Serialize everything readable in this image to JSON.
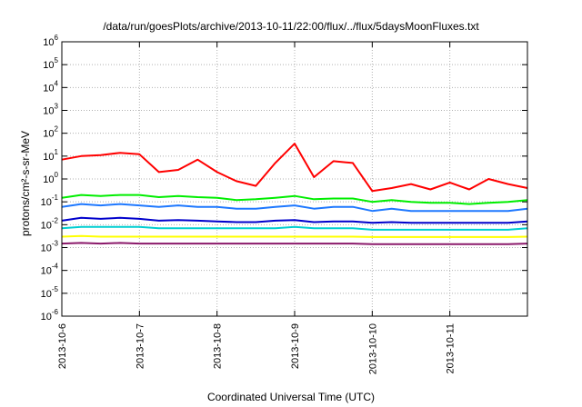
{
  "chart_data": {
    "type": "line",
    "title": "/data/run/goesPlots/archive/2013-10-11/22:00/flux/../flux/5daysMoonFluxes.txt",
    "xlabel": "Coordinated Universal Time (UTC)",
    "ylabel": "protons/cm²-s-sr-MeV",
    "yscale": "log",
    "ylim": [
      1e-06,
      1000000.0
    ],
    "xlim": [
      "2013-10-06T00:00",
      "2013-10-12T00:00"
    ],
    "grid": true,
    "legend": "none",
    "xticks": [
      "2013-10-6",
      "2013-10-7",
      "2013-10-8",
      "2013-10-9",
      "2013-10-10",
      "2013-10-11"
    ],
    "yticks": [
      {
        "base": "10",
        "exp": "-6"
      },
      {
        "base": "10",
        "exp": "-5"
      },
      {
        "base": "10",
        "exp": "-4"
      },
      {
        "base": "10",
        "exp": "-3"
      },
      {
        "base": "10",
        "exp": "-2"
      },
      {
        "base": "10",
        "exp": "-1"
      },
      {
        "base": "10",
        "exp": "0"
      },
      {
        "base": "10",
        "exp": "1"
      },
      {
        "base": "10",
        "exp": "2"
      },
      {
        "base": "10",
        "exp": "3"
      },
      {
        "base": "10",
        "exp": "4"
      },
      {
        "base": "10",
        "exp": "5"
      },
      {
        "base": "10",
        "exp": "6"
      }
    ],
    "x": [
      "2013-10-06T00:00",
      "2013-10-06T06:00",
      "2013-10-06T12:00",
      "2013-10-06T18:00",
      "2013-10-07T00:00",
      "2013-10-07T06:00",
      "2013-10-07T12:00",
      "2013-10-07T18:00",
      "2013-10-08T00:00",
      "2013-10-08T06:00",
      "2013-10-08T12:00",
      "2013-10-08T18:00",
      "2013-10-09T00:00",
      "2013-10-09T06:00",
      "2013-10-09T12:00",
      "2013-10-09T18:00",
      "2013-10-10T00:00",
      "2013-10-10T06:00",
      "2013-10-10T12:00",
      "2013-10-10T18:00",
      "2013-10-11T00:00",
      "2013-10-11T06:00",
      "2013-10-11T12:00",
      "2013-10-11T18:00",
      "2013-10-12T00:00"
    ],
    "series": [
      {
        "color": "#ff0000",
        "values": [
          7,
          10,
          11,
          14,
          12,
          2,
          2.5,
          7,
          2,
          0.8,
          0.5,
          5,
          35,
          1.2,
          6,
          5,
          0.3,
          0.4,
          0.6,
          0.35,
          0.7,
          0.35,
          1.0,
          0.6,
          0.4
        ]
      },
      {
        "color": "#00ee00",
        "values": [
          0.15,
          0.2,
          0.18,
          0.2,
          0.2,
          0.16,
          0.18,
          0.16,
          0.15,
          0.12,
          0.13,
          0.15,
          0.18,
          0.13,
          0.14,
          0.14,
          0.1,
          0.12,
          0.1,
          0.09,
          0.09,
          0.08,
          0.09,
          0.1,
          0.12
        ]
      },
      {
        "color": "#1e78ff",
        "values": [
          0.06,
          0.08,
          0.07,
          0.08,
          0.07,
          0.06,
          0.07,
          0.06,
          0.06,
          0.05,
          0.05,
          0.06,
          0.07,
          0.05,
          0.06,
          0.06,
          0.04,
          0.05,
          0.04,
          0.04,
          0.04,
          0.04,
          0.04,
          0.04,
          0.05
        ]
      },
      {
        "color": "#0000cc",
        "values": [
          0.015,
          0.02,
          0.018,
          0.02,
          0.018,
          0.015,
          0.016,
          0.015,
          0.014,
          0.013,
          0.013,
          0.015,
          0.016,
          0.013,
          0.014,
          0.014,
          0.012,
          0.013,
          0.012,
          0.012,
          0.012,
          0.012,
          0.012,
          0.012,
          0.014
        ]
      },
      {
        "color": "#00ced1",
        "values": [
          0.007,
          0.008,
          0.008,
          0.008,
          0.008,
          0.007,
          0.007,
          0.007,
          0.007,
          0.007,
          0.007,
          0.007,
          0.008,
          0.007,
          0.007,
          0.007,
          0.006,
          0.006,
          0.006,
          0.006,
          0.006,
          0.006,
          0.006,
          0.006,
          0.007
        ]
      },
      {
        "color": "#ffff00",
        "values": [
          0.003,
          0.0032,
          0.003,
          0.003,
          0.003,
          0.003,
          0.003,
          0.003,
          0.003,
          0.003,
          0.003,
          0.003,
          0.003,
          0.003,
          0.003,
          0.003,
          0.0029,
          0.0029,
          0.0029,
          0.0029,
          0.0029,
          0.0029,
          0.0029,
          0.0029,
          0.003
        ]
      },
      {
        "color": "#8b1a6b",
        "values": [
          0.0015,
          0.0016,
          0.0015,
          0.0016,
          0.0015,
          0.0015,
          0.0015,
          0.0015,
          0.0015,
          0.0015,
          0.0015,
          0.0015,
          0.0015,
          0.0015,
          0.0015,
          0.0015,
          0.0014,
          0.0014,
          0.0014,
          0.0014,
          0.0014,
          0.0014,
          0.0014,
          0.0014,
          0.0015
        ]
      }
    ]
  }
}
